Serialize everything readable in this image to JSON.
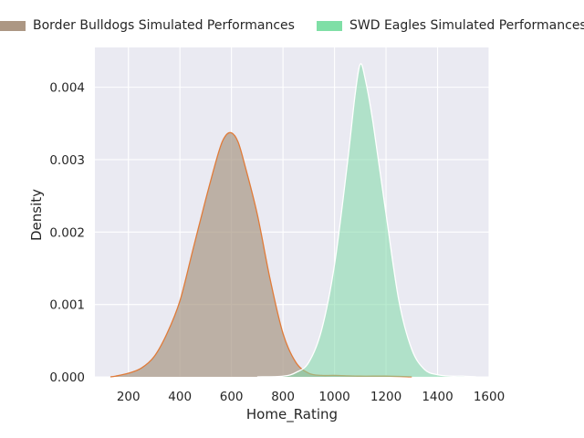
{
  "chart_data": {
    "type": "area",
    "xlabel": "Home_Rating",
    "ylabel": "Density",
    "xlim": [
      70,
      1600
    ],
    "ylim": [
      0,
      0.00455
    ],
    "xticks": [
      200,
      400,
      600,
      800,
      1000,
      1200,
      1400,
      1600
    ],
    "yticks": [
      0.0,
      0.001,
      0.002,
      0.003,
      0.004
    ],
    "xtick_labels": [
      "200",
      "400",
      "600",
      "800",
      "1000",
      "1200",
      "1400",
      "1600"
    ],
    "ytick_labels": [
      "0.000",
      "0.001",
      "0.002",
      "0.003",
      "0.004"
    ],
    "grid": true,
    "background": "#eaeaf2",
    "legend_position": "top",
    "series": [
      {
        "name": "Border Bulldogs Simulated Performances",
        "fill_color": "#a89784",
        "line_color": "#e07b39",
        "legend_color": "#ac9783",
        "x": [
          130,
          150,
          200,
          250,
          300,
          350,
          400,
          450,
          500,
          550,
          575,
          600,
          625,
          650,
          700,
          750,
          800,
          850,
          900,
          950,
          1000,
          1100,
          1200,
          1300
        ],
        "y": [
          0.0,
          1e-05,
          5e-05,
          0.00012,
          0.00028,
          0.0006,
          0.00105,
          0.00175,
          0.00245,
          0.0031,
          0.00332,
          0.00337,
          0.00325,
          0.00295,
          0.00225,
          0.00135,
          0.0006,
          0.0002,
          5e-05,
          2e-05,
          2e-05,
          1e-05,
          1e-05,
          0.0
        ]
      },
      {
        "name": "SWD Eagles Simulated Performances",
        "fill_color": "#7fd8a8",
        "line_color": "#ffffff",
        "legend_color": "#7fdfa6",
        "x": [
          700,
          800,
          850,
          900,
          950,
          1000,
          1050,
          1080,
          1100,
          1120,
          1150,
          1200,
          1250,
          1300,
          1350,
          1400,
          1450,
          1500,
          1550
        ],
        "y": [
          0.0,
          1e-05,
          6e-05,
          0.0002,
          0.00065,
          0.00155,
          0.00295,
          0.0039,
          0.00432,
          0.0041,
          0.0035,
          0.00225,
          0.00105,
          0.00038,
          0.0001,
          3e-05,
          1e-05,
          1e-05,
          0.0
        ]
      }
    ]
  }
}
